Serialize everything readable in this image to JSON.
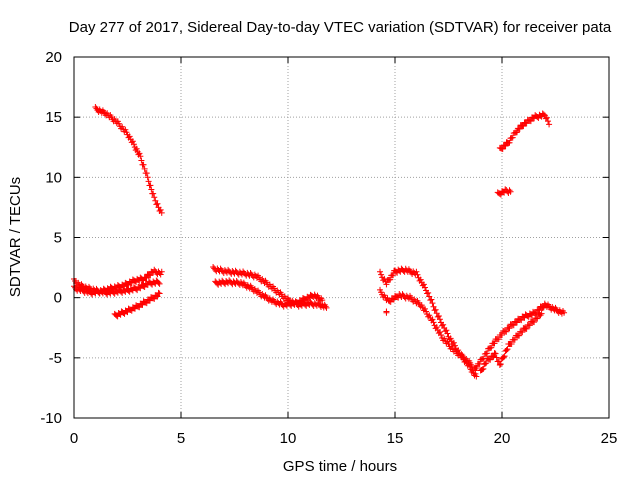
{
  "chart_data": {
    "type": "scatter",
    "title": "Day 277 of 2017, Sidereal Day-to-day VTEC variation (SDTVAR) for receiver pata",
    "xlabel": "GPS time / hours",
    "ylabel": "SDTVAR / TECUs",
    "xlim": [
      0,
      25
    ],
    "ylim": [
      -10,
      20
    ],
    "xticks": [
      "0",
      "5",
      "10",
      "15",
      "20",
      "25"
    ],
    "yticks": [
      "-10",
      "-5",
      "0",
      "5",
      "10",
      "15",
      "20"
    ],
    "grid": true,
    "marker": "+",
    "series": [
      {
        "name": "SDTVAR",
        "color": "#ff0000",
        "segments": [
          [
            [
              1.0,
              15.7
            ],
            [
              1.5,
              15.3
            ],
            [
              2.0,
              14.6
            ],
            [
              2.5,
              13.6
            ],
            [
              2.8,
              12.7
            ],
            [
              3.1,
              11.7
            ],
            [
              3.4,
              10.2
            ],
            [
              3.7,
              8.5
            ],
            [
              4.0,
              7.3
            ],
            [
              4.1,
              7.0
            ]
          ],
          [
            [
              0.0,
              1.4
            ],
            [
              0.3,
              1.0
            ],
            [
              0.6,
              0.8
            ],
            [
              1.0,
              0.6
            ],
            [
              1.5,
              0.4
            ],
            [
              2.0,
              0.5
            ],
            [
              2.5,
              0.6
            ],
            [
              3.0,
              0.8
            ],
            [
              3.5,
              1.2
            ],
            [
              4.0,
              1.3
            ]
          ],
          [
            [
              0.0,
              0.8
            ],
            [
              0.4,
              0.6
            ],
            [
              0.8,
              0.4
            ],
            [
              1.2,
              0.5
            ],
            [
              1.8,
              0.8
            ],
            [
              2.3,
              1.0
            ],
            [
              2.8,
              1.4
            ],
            [
              3.3,
              1.6
            ],
            [
              3.7,
              2.2
            ],
            [
              4.1,
              2.0
            ]
          ],
          [
            [
              1.9,
              -1.5
            ],
            [
              2.5,
              -1.1
            ],
            [
              3.0,
              -0.7
            ],
            [
              3.5,
              -0.2
            ],
            [
              4.0,
              0.3
            ]
          ],
          [
            [
              6.5,
              2.4
            ],
            [
              7.0,
              2.2
            ],
            [
              7.5,
              2.1
            ],
            [
              8.0,
              2.0
            ],
            [
              8.5,
              1.8
            ],
            [
              9.0,
              1.2
            ],
            [
              9.5,
              0.5
            ],
            [
              10.0,
              -0.2
            ],
            [
              10.5,
              -0.6
            ],
            [
              11.0,
              -0.5
            ],
            [
              11.5,
              -0.6
            ],
            [
              11.8,
              -0.8
            ]
          ],
          [
            [
              6.6,
              1.2
            ],
            [
              7.2,
              1.3
            ],
            [
              7.8,
              1.2
            ],
            [
              8.3,
              0.8
            ],
            [
              8.8,
              0.2
            ],
            [
              9.3,
              -0.3
            ],
            [
              9.8,
              -0.6
            ],
            [
              10.3,
              -0.5
            ],
            [
              10.8,
              -0.1
            ],
            [
              11.2,
              0.2
            ],
            [
              11.6,
              -0.2
            ]
          ],
          [
            [
              14.3,
              2.0
            ],
            [
              14.6,
              1.2
            ],
            [
              15.0,
              2.2
            ],
            [
              15.5,
              2.3
            ],
            [
              16.0,
              2.0
            ],
            [
              16.5,
              0.5
            ],
            [
              17.0,
              -1.5
            ],
            [
              17.5,
              -3.2
            ],
            [
              18.0,
              -4.6
            ],
            [
              18.5,
              -5.8
            ],
            [
              18.8,
              -6.6
            ]
          ],
          [
            [
              14.3,
              0.5
            ],
            [
              14.7,
              -0.3
            ],
            [
              15.2,
              0.2
            ],
            [
              15.7,
              0.0
            ],
            [
              16.2,
              -0.6
            ],
            [
              16.7,
              -1.8
            ],
            [
              17.2,
              -3.3
            ],
            [
              17.7,
              -4.3
            ],
            [
              18.2,
              -5.0
            ],
            [
              18.6,
              -5.6
            ]
          ],
          [
            [
              18.7,
              -6.0
            ],
            [
              19.0,
              -5.3
            ],
            [
              19.5,
              -4.0
            ],
            [
              20.0,
              -3.0
            ],
            [
              20.5,
              -2.2
            ],
            [
              21.0,
              -1.6
            ],
            [
              21.5,
              -1.3
            ],
            [
              22.0,
              -0.6
            ],
            [
              22.5,
              -1.0
            ],
            [
              22.9,
              -1.3
            ]
          ],
          [
            [
              19.0,
              -6.2
            ],
            [
              19.3,
              -5.2
            ],
            [
              19.7,
              -4.7
            ],
            [
              19.9,
              -5.6
            ],
            [
              20.3,
              -4.0
            ],
            [
              20.8,
              -3.0
            ],
            [
              21.3,
              -2.2
            ],
            [
              21.8,
              -1.4
            ],
            [
              22.0,
              -0.5
            ]
          ],
          [
            [
              19.9,
              12.3
            ],
            [
              20.3,
              12.9
            ],
            [
              20.7,
              13.9
            ],
            [
              21.0,
              14.4
            ],
            [
              21.5,
              15.0
            ],
            [
              22.0,
              15.2
            ],
            [
              22.2,
              14.5
            ]
          ],
          [
            [
              19.8,
              8.6
            ],
            [
              20.2,
              8.9
            ],
            [
              20.4,
              8.8
            ]
          ],
          [
            [
              14.6,
              -1.3
            ],
            [
              14.6,
              -1.3
            ]
          ]
        ]
      }
    ]
  }
}
